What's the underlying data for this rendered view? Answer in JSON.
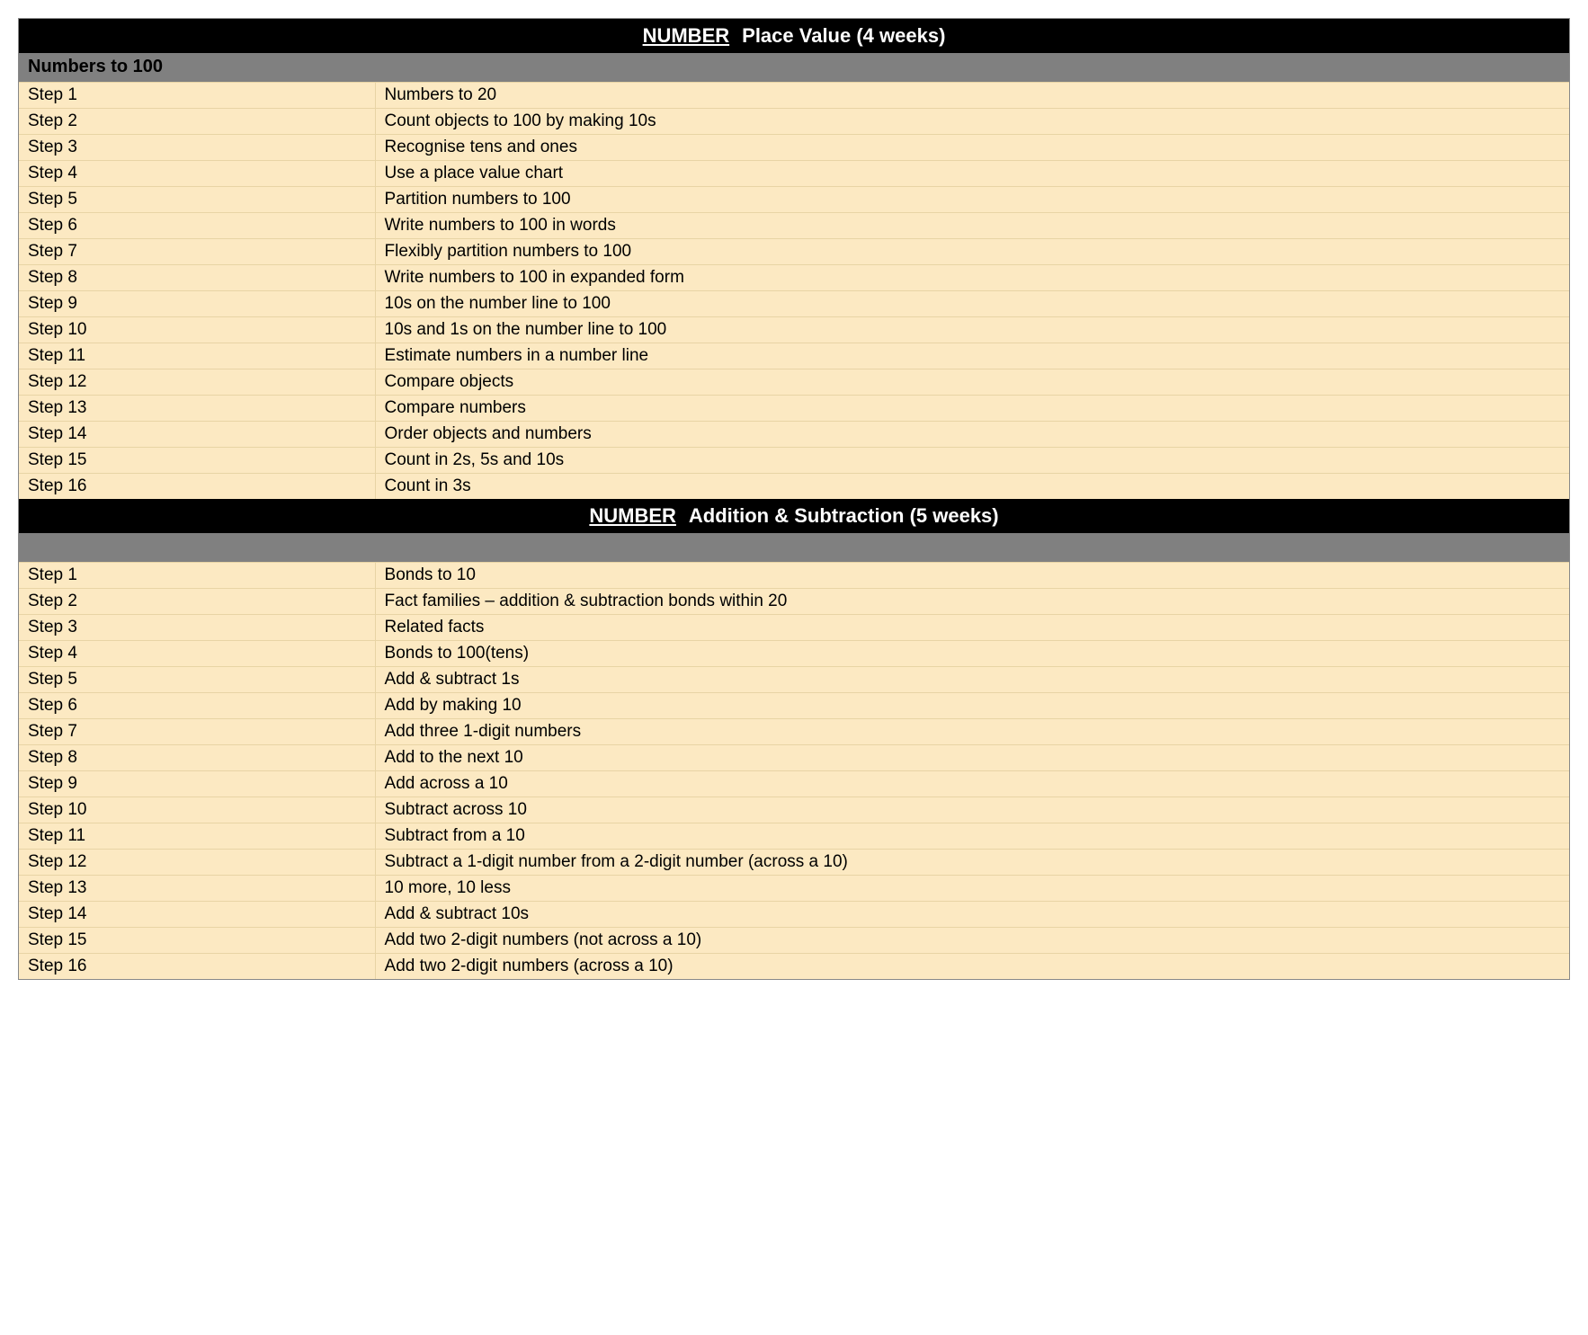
{
  "colors": {
    "header_bg": "#000000",
    "header_text": "#ffffff",
    "subheader_bg": "#808080",
    "subheader_text": "#000000",
    "row_bg": "#fce9c2",
    "row_border": "#e8d4a5",
    "outer_border": "#888888",
    "page_bg": "#ffffff"
  },
  "typography": {
    "font_family": "Arial, Helvetica, sans-serif",
    "header_fontsize_pt": 16,
    "subheader_fontsize_pt": 15,
    "row_fontsize_pt": 14
  },
  "layout": {
    "step_col_width_pct": 23
  },
  "sections": [
    {
      "category": "NUMBER",
      "title": "Place Value (4 weeks)",
      "subheader": "Numbers to 100",
      "rows": [
        {
          "step": "Step 1",
          "desc": "Numbers to 20"
        },
        {
          "step": "Step 2",
          "desc": "Count objects to 100 by making 10s"
        },
        {
          "step": "Step 3",
          "desc": "Recognise tens and ones"
        },
        {
          "step": "Step 4",
          "desc": "Use a place value chart"
        },
        {
          "step": "Step 5",
          "desc": "Partition numbers to 100"
        },
        {
          "step": "Step 6",
          "desc": "Write numbers to 100 in words"
        },
        {
          "step": "Step 7",
          "desc": "Flexibly partition numbers to 100"
        },
        {
          "step": "Step 8",
          "desc": "Write numbers to 100 in expanded form"
        },
        {
          "step": "Step 9",
          "desc": "10s on the number line to 100"
        },
        {
          "step": "Step 10",
          "desc": "10s and 1s on the number line to 100"
        },
        {
          "step": "Step 11",
          "desc": "Estimate numbers in a number line"
        },
        {
          "step": "Step 12",
          "desc": "Compare objects"
        },
        {
          "step": "Step 13",
          "desc": "Compare numbers"
        },
        {
          "step": "Step 14",
          "desc": "Order objects and numbers"
        },
        {
          "step": "Step 15",
          "desc": "Count in 2s, 5s and 10s"
        },
        {
          "step": "Step 16",
          "desc": "Count in 3s"
        }
      ]
    },
    {
      "category": "NUMBER",
      "title": "Addition & Subtraction (5 weeks)",
      "subheader": "",
      "rows": [
        {
          "step": "Step 1",
          "desc": "Bonds to 10"
        },
        {
          "step": "Step 2",
          "desc": "Fact families – addition & subtraction bonds within 20"
        },
        {
          "step": "Step 3",
          "desc": "Related facts"
        },
        {
          "step": "Step 4",
          "desc": "Bonds to 100(tens)"
        },
        {
          "step": "Step 5",
          "desc": "Add & subtract 1s"
        },
        {
          "step": "Step 6",
          "desc": "Add by making 10"
        },
        {
          "step": "Step 7",
          "desc": "Add three 1-digit numbers"
        },
        {
          "step": "Step 8",
          "desc": "Add to the next 10"
        },
        {
          "step": "Step 9",
          "desc": "Add across a 10"
        },
        {
          "step": "Step 10",
          "desc": "Subtract across 10"
        },
        {
          "step": "Step 11",
          "desc": "Subtract from a 10"
        },
        {
          "step": "Step 12",
          "desc": "Subtract a 1-digit number from a 2-digit number (across a 10)"
        },
        {
          "step": "Step 13",
          "desc": "10 more, 10 less"
        },
        {
          "step": "Step 14",
          "desc": "Add & subtract 10s"
        },
        {
          "step": "Step 15",
          "desc": "Add two 2-digit numbers (not across a 10)"
        },
        {
          "step": "Step 16",
          "desc": "Add two 2-digit numbers (across a 10)"
        }
      ]
    }
  ]
}
